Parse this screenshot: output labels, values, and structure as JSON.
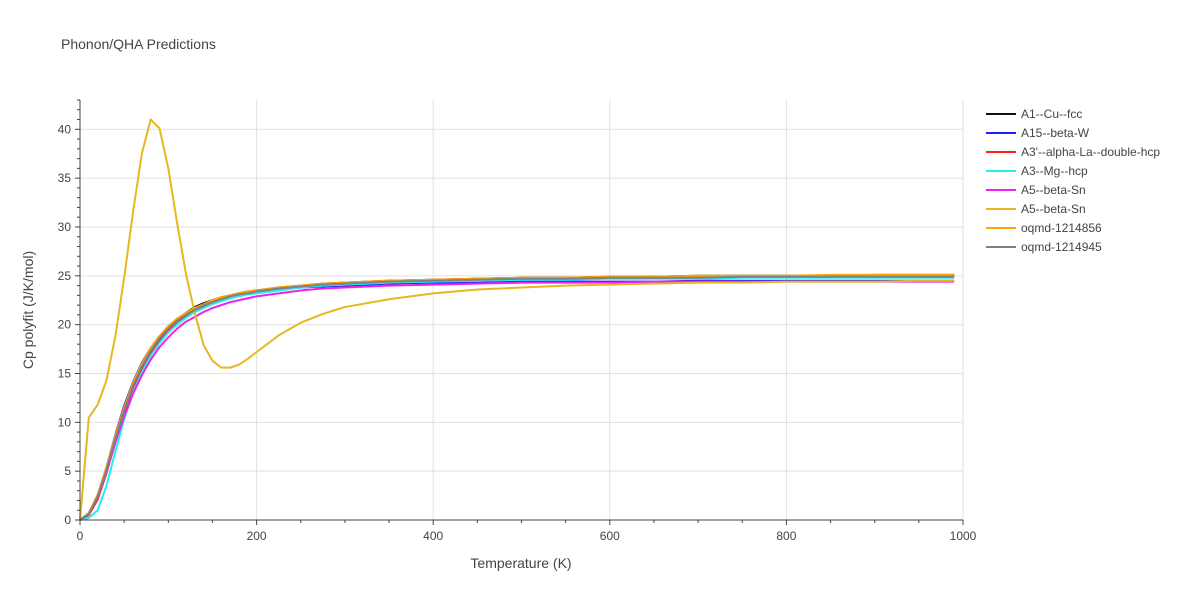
{
  "chart_data": {
    "type": "line",
    "title": "Phonon/QHA Predictions",
    "xlabel": "Temperature (K)",
    "ylabel": "Cp polyfit (J/K/mol)",
    "xlim": [
      0,
      1000
    ],
    "ylim": [
      0,
      43
    ],
    "x_ticks": [
      0,
      200,
      400,
      600,
      800,
      1000
    ],
    "y_ticks": [
      0,
      5,
      10,
      15,
      20,
      25,
      30,
      35,
      40
    ],
    "grid": true,
    "legend_position": "top-right",
    "x": [
      0,
      10,
      20,
      30,
      40,
      50,
      60,
      70,
      80,
      90,
      100,
      110,
      120,
      130,
      140,
      150,
      160,
      170,
      180,
      190,
      200,
      225,
      250,
      275,
      300,
      350,
      400,
      450,
      500,
      550,
      600,
      650,
      700,
      750,
      800,
      850,
      900,
      950,
      990
    ],
    "series": [
      {
        "name": "A1--Cu--fcc",
        "color": "#111111",
        "values": [
          0,
          0.7,
          2.4,
          5.2,
          8.4,
          11.4,
          13.9,
          15.9,
          17.5,
          18.8,
          19.8,
          20.6,
          21.2,
          21.8,
          22.2,
          22.5,
          22.8,
          23.0,
          23.2,
          23.4,
          23.5,
          23.8,
          24.0,
          24.2,
          24.3,
          24.5,
          24.6,
          24.7,
          24.8,
          24.8,
          24.9,
          24.9,
          25.0,
          25.0,
          25.0,
          25.0,
          25.1,
          25.1,
          25.1
        ]
      },
      {
        "name": "A15--beta-W",
        "color": "#1f1fff",
        "values": [
          0,
          0.7,
          2.5,
          5.4,
          8.7,
          11.7,
          14.1,
          16.1,
          17.6,
          18.8,
          19.8,
          20.5,
          21.1,
          21.6,
          22.0,
          22.3,
          22.6,
          22.8,
          23.0,
          23.2,
          23.3,
          23.6,
          23.8,
          23.9,
          24.0,
          24.2,
          24.3,
          24.3,
          24.4,
          24.4,
          24.4,
          24.4,
          24.5,
          24.5,
          24.5,
          24.5,
          24.5,
          24.5,
          24.5
        ]
      },
      {
        "name": "A3'--alpha-La--double-hcp",
        "color": "#ff1f1f",
        "values": [
          0,
          0.5,
          2.1,
          4.8,
          8.0,
          11.0,
          13.5,
          15.5,
          17.1,
          18.4,
          19.4,
          20.3,
          20.9,
          21.4,
          21.9,
          22.2,
          22.5,
          22.8,
          23.0,
          23.2,
          23.3,
          23.6,
          23.9,
          24.1,
          24.2,
          24.4,
          24.6,
          24.7,
          24.7,
          24.8,
          24.8,
          24.9,
          24.9,
          24.9,
          24.9,
          25.0,
          25.0,
          25.0,
          25.0
        ]
      },
      {
        "name": "A3--Mg--hcp",
        "color": "#22eeee",
        "values": [
          0,
          0.2,
          1.0,
          3.5,
          7.0,
          10.3,
          13.0,
          15.1,
          16.8,
          18.1,
          19.2,
          20.0,
          20.7,
          21.3,
          21.7,
          22.1,
          22.4,
          22.7,
          22.9,
          23.1,
          23.2,
          23.5,
          23.8,
          24.0,
          24.1,
          24.3,
          24.4,
          24.5,
          24.6,
          24.6,
          24.7,
          24.7,
          24.7,
          24.8,
          24.8,
          24.8,
          24.8,
          24.8,
          24.8
        ]
      },
      {
        "name": "A5--beta-Sn",
        "color": "#ee22ee",
        "values": [
          0,
          0.6,
          2.3,
          4.9,
          7.9,
          10.6,
          12.9,
          14.8,
          16.4,
          17.7,
          18.7,
          19.6,
          20.3,
          20.8,
          21.3,
          21.7,
          22.0,
          22.3,
          22.5,
          22.7,
          22.9,
          23.2,
          23.5,
          23.7,
          23.8,
          24.0,
          24.1,
          24.2,
          24.3,
          24.3,
          24.3,
          24.4,
          24.4,
          24.4,
          24.4,
          24.4,
          24.4,
          24.4,
          24.4
        ]
      },
      {
        "name": "A5--beta-Sn",
        "color": "#e6b81e",
        "values": [
          0,
          10.5,
          11.8,
          14.3,
          18.8,
          24.8,
          31.5,
          37.5,
          41.0,
          40.1,
          36.0,
          30.4,
          25.2,
          21.2,
          17.9,
          16.3,
          15.6,
          15.6,
          15.9,
          16.5,
          17.2,
          18.9,
          20.2,
          21.1,
          21.8,
          22.6,
          23.2,
          23.6,
          23.8,
          24.0,
          24.1,
          24.2,
          24.3,
          24.3,
          24.4,
          24.4,
          24.4,
          24.5,
          24.5
        ]
      },
      {
        "name": "oqmd-1214856",
        "color": "#ffa500",
        "values": [
          0,
          0.7,
          2.6,
          5.4,
          8.6,
          11.5,
          14.0,
          16.0,
          17.6,
          18.8,
          19.8,
          20.6,
          21.2,
          21.7,
          22.1,
          22.5,
          22.8,
          23.0,
          23.2,
          23.4,
          23.5,
          23.8,
          24.0,
          24.2,
          24.3,
          24.5,
          24.6,
          24.7,
          24.8,
          24.8,
          24.9,
          24.9,
          25.0,
          25.0,
          25.0,
          25.1,
          25.1,
          25.1,
          25.1
        ]
      },
      {
        "name": "oqmd-1214945",
        "color": "#808080",
        "values": [
          0,
          0.6,
          2.4,
          5.1,
          8.3,
          11.2,
          13.7,
          15.7,
          17.3,
          18.6,
          19.6,
          20.4,
          21.0,
          21.5,
          22.0,
          22.3,
          22.6,
          22.9,
          23.1,
          23.2,
          23.4,
          23.7,
          23.9,
          24.1,
          24.2,
          24.4,
          24.5,
          24.6,
          24.7,
          24.7,
          24.8,
          24.8,
          24.8,
          24.9,
          24.9,
          24.9,
          24.9,
          24.9,
          24.9
        ]
      }
    ]
  }
}
